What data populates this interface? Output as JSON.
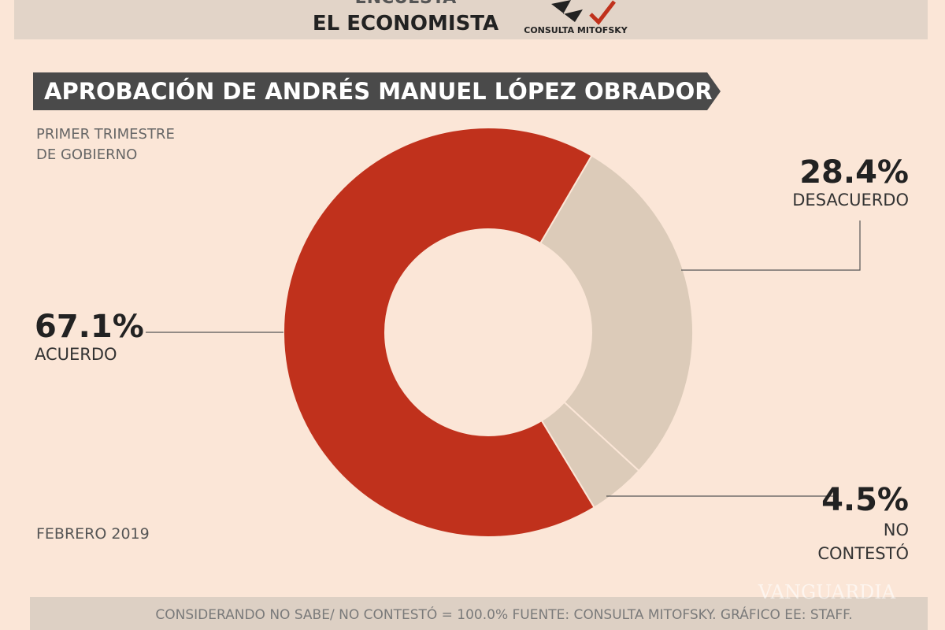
{
  "header": {
    "survey": "ENCUESTA",
    "outlet": "EL ECONOMISTA",
    "logo": "CONSULTA MITOFSKY"
  },
  "chart_data": {
    "type": "pie",
    "title": "APROBACIÓN DE ANDRÉS MANUEL LÓPEZ OBRADOR",
    "subtitle": [
      "PRIMER TRIMESTRE",
      "DE GOBIERNO"
    ],
    "date": "FEBRERO 2019",
    "categories": [
      "ACUERDO",
      "DESACUERDO",
      "NO CONTESTÓ"
    ],
    "values": [
      67.1,
      28.4,
      4.5
    ],
    "value_labels": [
      "67.1%",
      "28.4%",
      "4.5%"
    ],
    "colors": [
      "#c0311c",
      "#dccbb9",
      "#dccbb9"
    ]
  },
  "footer": "CONSIDERANDO NO SABE/ NO CONTESTÓ = 100.0%  FUENTE: CONSULTA MITOFSKY.  GRÁFICO EE: STAFF.",
  "watermark": "VANGUARDIA"
}
